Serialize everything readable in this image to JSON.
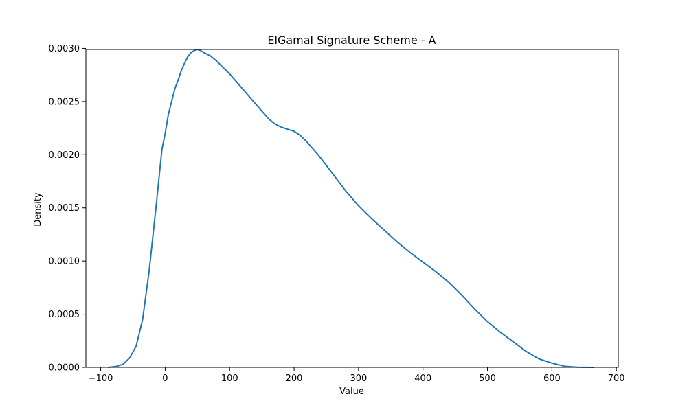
{
  "chart_data": {
    "type": "line",
    "title": "ElGamal Signature Scheme - A",
    "xlabel": "Value",
    "ylabel": "Density",
    "xlim": [
      -123,
      703
    ],
    "ylim": [
      0,
      0.00299
    ],
    "xticks": [
      -100,
      0,
      100,
      200,
      300,
      400,
      500,
      600,
      700
    ],
    "xtick_labels": [
      "−100",
      "0",
      "100",
      "200",
      "300",
      "400",
      "500",
      "600",
      "700"
    ],
    "yticks": [
      0,
      0.0005,
      0.001,
      0.0015,
      0.002,
      0.0025,
      0.003
    ],
    "ytick_labels": [
      "0.0000",
      "0.0005",
      "0.0010",
      "0.0015",
      "0.0020",
      "0.0025",
      "0.0030"
    ],
    "grid": false,
    "series": [
      {
        "color": "#1f77b4",
        "x": [
          -88,
          -75,
          -65,
          -55,
          -45,
          -35,
          -25,
          -15,
          -5,
          0,
          5,
          10,
          15,
          20,
          25,
          30,
          35,
          40,
          45,
          50,
          55,
          60,
          70,
          80,
          90,
          100,
          110,
          120,
          140,
          160,
          170,
          180,
          190,
          200,
          210,
          220,
          240,
          260,
          280,
          300,
          320,
          340,
          360,
          380,
          400,
          420,
          440,
          460,
          480,
          500,
          520,
          540,
          560,
          580,
          600,
          620,
          640,
          665
        ],
        "y": [
          0,
          1e-05,
          3e-05,
          9e-05,
          0.0002,
          0.00045,
          0.0009,
          0.00146,
          0.00205,
          0.0022,
          0.00238,
          0.0025,
          0.00262,
          0.0027,
          0.00279,
          0.00286,
          0.00292,
          0.00296,
          0.00298,
          0.00299,
          0.00298,
          0.00296,
          0.00293,
          0.00288,
          0.00282,
          0.00276,
          0.00269,
          0.00262,
          0.00248,
          0.00234,
          0.00229,
          0.00226,
          0.00224,
          0.00222,
          0.00218,
          0.00212,
          0.00198,
          0.00182,
          0.00166,
          0.00152,
          0.0014,
          0.00129,
          0.00118,
          0.00108,
          0.00099,
          0.0009,
          0.0008,
          0.00068,
          0.00055,
          0.00043,
          0.00033,
          0.00024,
          0.00015,
          8e-05,
          4e-05,
          1e-05,
          2e-06,
          0
        ]
      }
    ]
  }
}
